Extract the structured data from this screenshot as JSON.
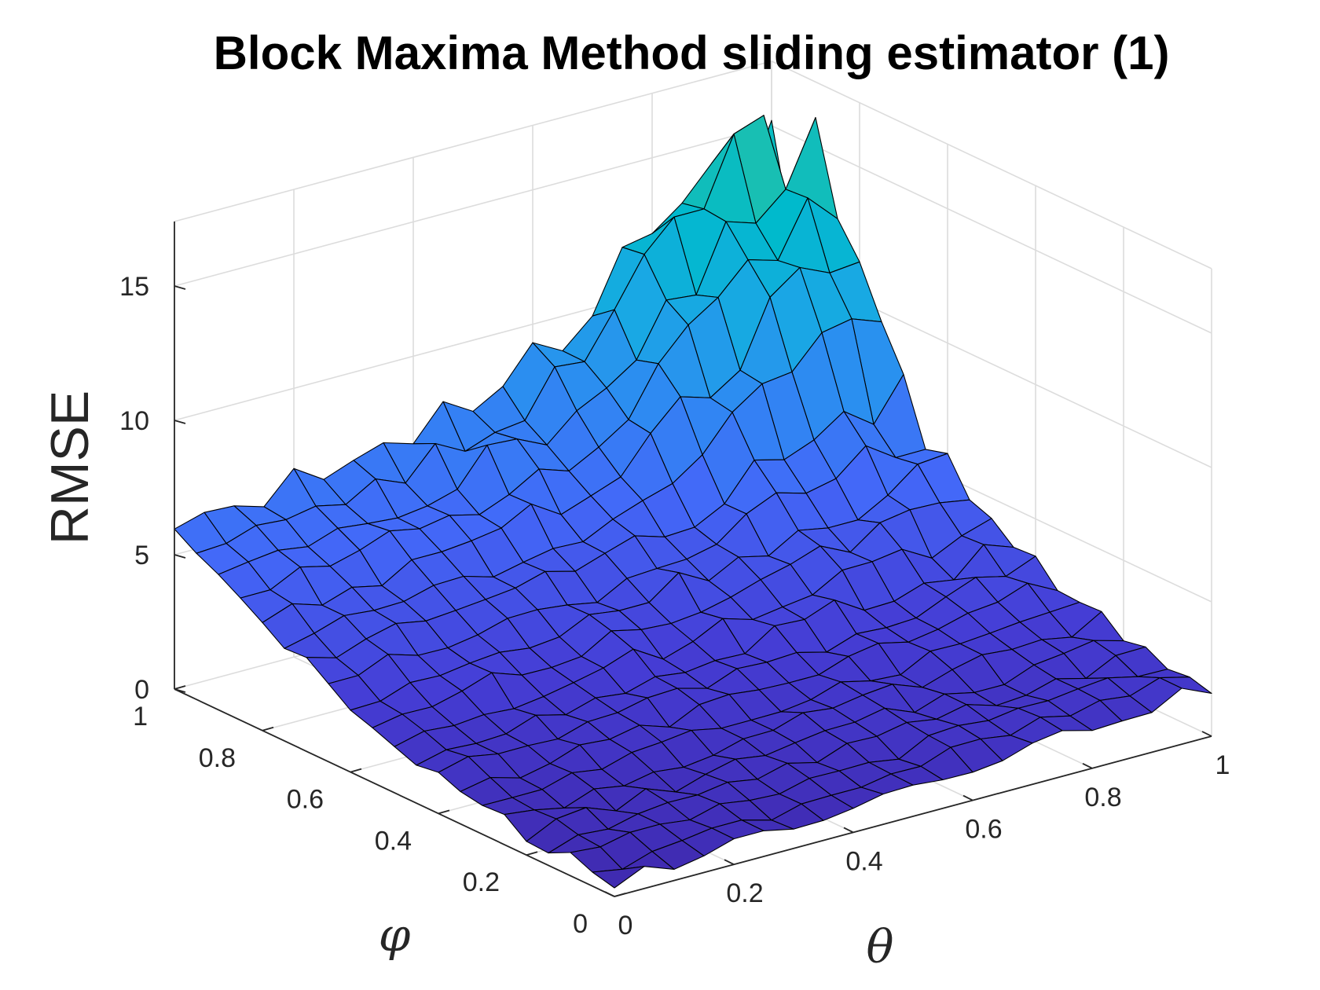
{
  "chart_data": {
    "type": "surface",
    "title": "Block Maxima Method sliding estimator (1)",
    "xlabel": "θ",
    "ylabel": "φ",
    "zlabel": "RMSE",
    "xlim": [
      0,
      1
    ],
    "ylim": [
      0,
      1
    ],
    "zlim": [
      0,
      15
    ],
    "x_ticks": [
      "0",
      "0.2",
      "0.4",
      "0.6",
      "0.8",
      "1"
    ],
    "y_ticks": [
      "0",
      "0.2",
      "0.4",
      "0.6",
      "0.8",
      "1"
    ],
    "z_ticks": [
      "0",
      "5",
      "10",
      "15"
    ],
    "grid": true,
    "colormap": "parula",
    "edge_color": "#000000",
    "x": [
      0,
      0.05,
      0.1,
      0.15,
      0.2,
      0.25,
      0.3,
      0.35,
      0.4,
      0.45,
      0.5,
      0.55,
      0.6,
      0.65,
      0.7,
      0.75,
      0.8,
      0.85,
      0.9,
      0.95,
      1
    ],
    "y": [
      0,
      0.05,
      0.1,
      0.15,
      0.2,
      0.25,
      0.3,
      0.35,
      0.4,
      0.45,
      0.5,
      0.55,
      0.6,
      0.65,
      0.7,
      0.75,
      0.8,
      0.85,
      0.9,
      0.95,
      1
    ],
    "z_description": "RMSE values on a 21x21 (theta, phi) grid; approx. 0.5 near theta=0, phi=0, rising to about 7 at theta=0, phi=1, to about 2 at theta=1, phi=0, and peaking near 15 at theta=1, phi=1"
  }
}
